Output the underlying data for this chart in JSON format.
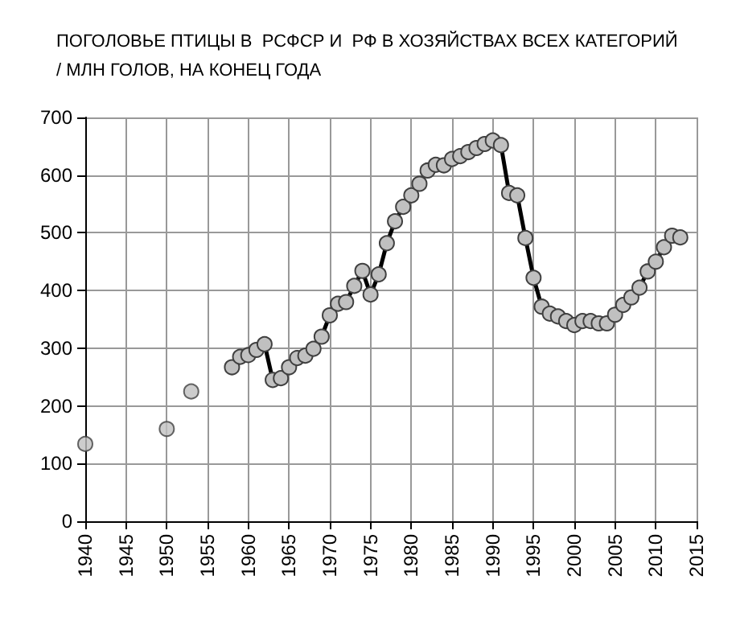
{
  "chart_data": {
    "type": "line",
    "title": "ПОГОЛОВЬЕ ПТИЦЫ В  РСФСР И  РФ В ХОЗЯЙСТВАХ ВСЕХ КАТЕГОРИЙ\n/ МЛН ГОЛОВ, НА КОНЕЦ ГОДА",
    "series": [
      {
        "type": "scatter",
        "color": "#c0c0c0",
        "x": [
          1940,
          1950,
          1953
        ],
        "values": [
          134,
          160,
          225
        ]
      },
      {
        "color": "#000000",
        "x": [
          1958,
          1959,
          1960,
          1961,
          1962,
          1963,
          1964,
          1965,
          1966,
          1967,
          1968,
          1969,
          1970,
          1971,
          1972,
          1973,
          1974,
          1975,
          1976,
          1977,
          1978,
          1979,
          1980,
          1981,
          1982,
          1983,
          1984,
          1985,
          1986,
          1987,
          1988,
          1989,
          1990,
          1991,
          1992,
          1993,
          1994,
          1995,
          1996,
          1997,
          1998,
          1999,
          2000,
          2001,
          2002,
          2003,
          2004,
          2005,
          2006,
          2007,
          2008,
          2009,
          2010,
          2011,
          2012,
          2013
        ],
        "values": [
          267,
          285,
          288,
          297,
          307,
          245,
          248,
          267,
          283,
          287,
          299,
          320,
          357,
          377,
          380,
          408,
          434,
          393,
          428,
          482,
          520,
          545,
          565,
          585,
          608,
          618,
          617,
          628,
          633,
          640,
          647,
          654,
          660,
          652,
          569,
          565,
          491,
          422,
          372,
          360,
          355,
          347,
          340,
          347,
          347,
          343,
          343,
          358,
          375,
          388,
          405,
          433,
          450,
          475,
          495,
          492
        ]
      }
    ],
    "xlim": [
      1940,
      2015
    ],
    "xticks": [
      1940,
      1945,
      1950,
      1955,
      1960,
      1965,
      1970,
      1975,
      1980,
      1985,
      1990,
      1995,
      2000,
      2005,
      2010,
      2015
    ],
    "ylim": [
      0,
      700
    ],
    "yticks": [
      0,
      100,
      200,
      300,
      400,
      500,
      600,
      700
    ],
    "grid": true,
    "marker": "circle",
    "line_style": "solid"
  }
}
